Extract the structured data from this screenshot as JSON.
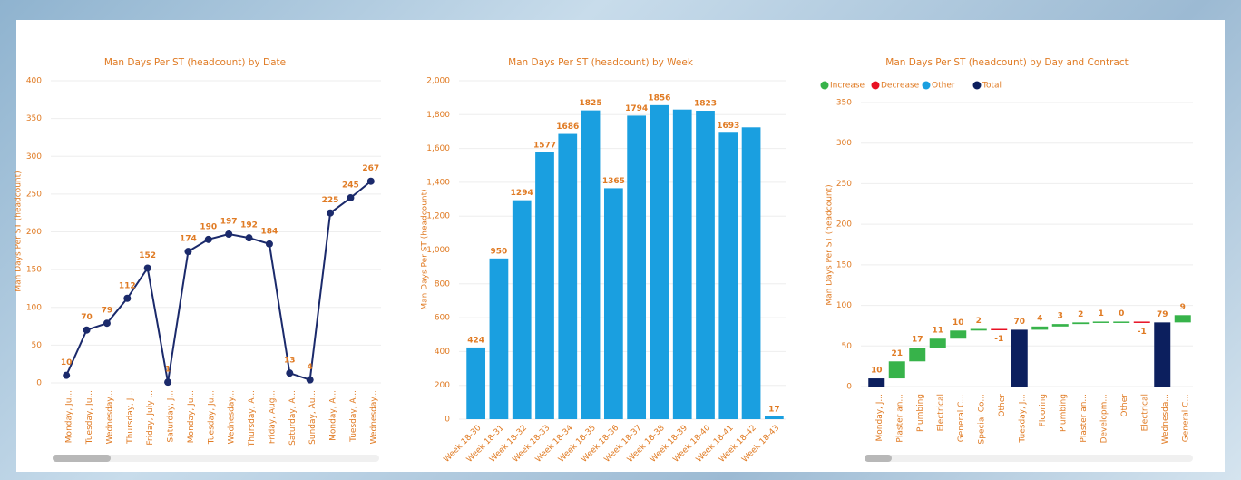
{
  "chart_data": [
    {
      "type": "line",
      "title": "Man Days Per ST (headcount) by Date",
      "y_label": "Man Days Per ST (headcount)",
      "categories": [
        "Monday, Ju...",
        "Tuesday, Ju...",
        "Wednesday...",
        "Thursday, J...",
        "Friday, July ...",
        "Saturday, J...",
        "Monday, Ju...",
        "Tuesday, Ju...",
        "Wednesday...",
        "Thursday, A...",
        "Friday, Aug...",
        "Saturday, A...",
        "Sunday, Au...",
        "Monday, A...",
        "Tuesday, A...",
        "Wednesday..."
      ],
      "values": [
        10,
        70,
        79,
        112,
        152,
        1,
        174,
        190,
        197,
        192,
        184,
        13,
        4,
        225,
        245,
        267
      ],
      "color": "#1b2a6b",
      "ylim": [
        0,
        400
      ],
      "yticks": [
        0,
        50,
        100,
        150,
        200,
        250,
        300,
        350,
        400
      ],
      "grid": true
    },
    {
      "type": "bar",
      "title": "Man Days Per ST (headcount) by Week",
      "y_label": "Man Days Per ST (headcount)",
      "categories": [
        "Week 18-30",
        "Week 18-31",
        "Week 18-32",
        "Week 18-33",
        "Week 18-34",
        "Week 18-35",
        "Week 18-36",
        "Week 18-37",
        "Week 18-38",
        "Week 18-39",
        "Week 18-40",
        "Week 18-41",
        "Week 18-42",
        "Week 18-43"
      ],
      "values": [
        424,
        950,
        1294,
        1577,
        1686,
        1825,
        1365,
        1794,
        1856,
        1830,
        1823,
        1693,
        1725,
        17
      ],
      "value_labels": [
        "424",
        "950",
        "1294",
        "1577",
        "1686",
        "1825",
        "1365",
        "1794",
        "1856",
        null,
        "1823",
        "1693",
        null,
        "17"
      ],
      "color": "#1a9fe0",
      "ylim": [
        0,
        2000
      ],
      "yticks": [
        0,
        200,
        400,
        600,
        800,
        {
          "value": 1000,
          "label": "1,000"
        },
        {
          "value": 1200,
          "label": "1,200"
        },
        {
          "value": 1400,
          "label": "1,400"
        },
        {
          "value": 1600,
          "label": "1,600"
        },
        {
          "value": 1800,
          "label": "1,800"
        },
        {
          "value": 2000,
          "label": "2,000"
        }
      ],
      "grid": true
    },
    {
      "type": "waterfall",
      "title": "Man Days Per ST (headcount) by Day and Contract",
      "y_label": "Man Days Per ST (headcount)",
      "legend": [
        {
          "name": "Increase",
          "color": "#37b34a"
        },
        {
          "name": "Decrease",
          "color": "#e81123"
        },
        {
          "name": "Other",
          "color": "#1a9fe0"
        },
        {
          "name": "Total",
          "color": "#0c1f5e"
        }
      ],
      "categories": [
        "Monday, J...",
        "Plaster an...",
        "Plumbing",
        "Electrical",
        "General C...",
        "Special Co...",
        "Other",
        "Tuesday, J...",
        "Flooring",
        "Plumbing",
        "Plaster an...",
        "Developm...",
        "Other",
        "Electrical",
        "Wednesda...",
        "General C..."
      ],
      "values": [
        10,
        21,
        17,
        11,
        10,
        2,
        -1,
        70,
        4,
        3,
        2,
        1,
        0,
        -1,
        79,
        9
      ],
      "kinds": [
        "Total",
        "Increase",
        "Increase",
        "Increase",
        "Increase",
        "Increase",
        "Decrease",
        "Total",
        "Increase",
        "Increase",
        "Increase",
        "Increase",
        "Increase",
        "Decrease",
        "Total",
        "Increase"
      ],
      "ylim": [
        0,
        350
      ],
      "yticks": [
        0,
        50,
        100,
        150,
        200,
        250,
        300,
        350
      ],
      "grid": true
    }
  ]
}
